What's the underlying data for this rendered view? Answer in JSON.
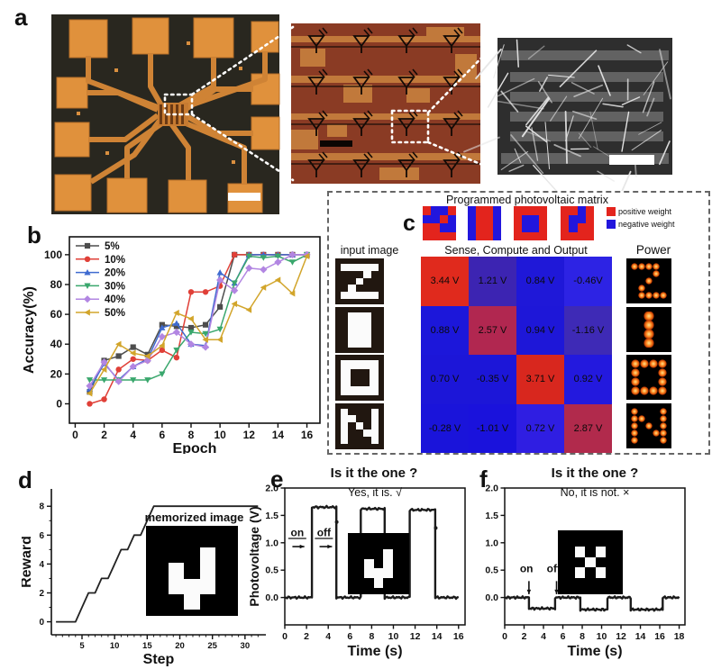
{
  "panel_labels": {
    "a": "a",
    "b": "b",
    "c": "c",
    "d": "d",
    "e": "e",
    "f": "f"
  },
  "panel_c": {
    "title": "Programmed photovoltaic matrix",
    "headers": {
      "input": "input image",
      "compute": "Sense, Compute and Output",
      "power": "Power"
    },
    "legend": {
      "positive_label": "positive weight",
      "negative_label": "negative weight",
      "positive_color": "#e3241d",
      "negative_color": "#2216dd"
    },
    "weight_patterns": [
      {
        "name": "weight-Z",
        "rows": [
          "RBBR",
          "BBRB",
          "RRBB",
          "RRRR"
        ]
      },
      {
        "name": "weight-I",
        "rows": [
          "BRRB",
          "BRRB",
          "BRRB",
          "BRRB"
        ]
      },
      {
        "name": "weight-O",
        "rows": [
          "RRRR",
          "RBBR",
          "RBBR",
          "RRRR"
        ]
      },
      {
        "name": "weight-N",
        "rows": [
          "RRBR",
          "RBBR",
          "RBRR",
          "RRRR"
        ]
      }
    ],
    "input_images": [
      {
        "name": "input-Z",
        "rows": [
          "11111",
          "00010",
          "00100",
          "01000",
          "11111"
        ]
      },
      {
        "name": "input-I",
        "rows": [
          "01110",
          "01110",
          "01110",
          "01110",
          "01110"
        ]
      },
      {
        "name": "input-O",
        "rows": [
          "1111",
          "1001",
          "1001",
          "1111"
        ]
      },
      {
        "name": "input-N",
        "rows": [
          "10001",
          "11001",
          "10101",
          "10011",
          "10001"
        ]
      }
    ],
    "matrix": {
      "rows": [
        [
          {
            "label": "3.44 V",
            "color": "#e02a1d"
          },
          {
            "label": "1.21 V",
            "color": "#3c24b2"
          },
          {
            "label": "0.84 V",
            "color": "#1f18d8"
          },
          {
            "label": "-0.46V",
            "color": "#2d23e4"
          }
        ],
        [
          {
            "label": "0.88 V",
            "color": "#1c17da"
          },
          {
            "label": "2.57 V",
            "color": "#b12750"
          },
          {
            "label": "0.94 V",
            "color": "#1e17d8"
          },
          {
            "label": "-1.16 V",
            "color": "#3e2ab6"
          }
        ],
        [
          {
            "label": "0.70 V",
            "color": "#1c16d8"
          },
          {
            "label": "-0.35 V",
            "color": "#1c16d8"
          },
          {
            "label": "3.71 V",
            "color": "#d8271e"
          },
          {
            "label": "0.92 V",
            "color": "#2319de"
          }
        ],
        [
          {
            "label": "-0.28 V",
            "color": "#1a14da"
          },
          {
            "label": "-1.01 V",
            "color": "#1a12dc"
          },
          {
            "label": "0.72 V",
            "color": "#2f1ee2"
          },
          {
            "label": "2.87 V",
            "color": "#b12a4c"
          }
        ]
      ]
    },
    "power_images": [
      {
        "name": "power-Z",
        "rows": [
          "11110",
          "00010",
          "00100",
          "01000",
          "01111"
        ]
      },
      {
        "name": "power-I",
        "rows": [
          "010",
          "010",
          "010",
          "010"
        ]
      },
      {
        "name": "power-O",
        "rows": [
          "1111",
          "1001",
          "1001",
          "1111"
        ]
      },
      {
        "name": "power-N",
        "rows": [
          "10001",
          "11001",
          "10101",
          "10011",
          "10001"
        ]
      }
    ]
  },
  "chart_data": [
    {
      "id": "b",
      "type": "line",
      "title": "",
      "xlabel": "Epoch",
      "ylabel": "Accuracy(%)",
      "xlim": [
        0,
        16
      ],
      "ylim": [
        0,
        100
      ],
      "xticks": [
        0,
        2,
        4,
        6,
        8,
        10,
        12,
        14,
        16
      ],
      "yticks": [
        0,
        20,
        40,
        60,
        80,
        100
      ],
      "legend_position": "top-left",
      "x": [
        1,
        2,
        3,
        4,
        5,
        6,
        7,
        8,
        9,
        10,
        11,
        12,
        13,
        14,
        15,
        16
      ],
      "series": [
        {
          "name": "5%",
          "color": "#4d4d4d",
          "marker": "square",
          "values": [
            8,
            29,
            32,
            38,
            33,
            53,
            52,
            51,
            53,
            65,
            100,
            100,
            100,
            100,
            100,
            100
          ]
        },
        {
          "name": "10%",
          "color": "#e04038",
          "marker": "circle",
          "values": [
            0,
            3,
            23,
            30,
            29,
            36,
            31,
            75,
            75,
            79,
            100,
            100,
            100,
            100,
            100,
            100
          ]
        },
        {
          "name": "20%",
          "color": "#3f6bd0",
          "marker": "triangle-up",
          "values": [
            10,
            27,
            16,
            25,
            30,
            51,
            54,
            40,
            39,
            88,
            81,
            100,
            100,
            100,
            100,
            100
          ]
        },
        {
          "name": "30%",
          "color": "#3aa76d",
          "marker": "triangle-down",
          "values": [
            16,
            16,
            16,
            16,
            16,
            20,
            36,
            48,
            47,
            50,
            81,
            99,
            98,
            99,
            95,
            100
          ]
        },
        {
          "name": "40%",
          "color": "#b286e2",
          "marker": "diamond",
          "values": [
            12,
            28,
            15,
            25,
            29,
            45,
            48,
            40,
            38,
            83,
            76,
            91,
            90,
            95,
            100,
            100
          ]
        },
        {
          "name": "50%",
          "color": "#d2a52b",
          "marker": "triangle-left",
          "values": [
            7,
            23,
            40,
            34,
            32,
            39,
            61,
            57,
            43,
            43,
            67,
            63,
            78,
            83,
            74,
            99
          ]
        }
      ]
    },
    {
      "id": "d",
      "type": "line",
      "xlabel": "Step",
      "ylabel": "Reward",
      "xlim": [
        1,
        32
      ],
      "ylim": [
        0,
        8
      ],
      "xticks": [
        5,
        10,
        15,
        20,
        25,
        30
      ],
      "yticks": [
        0,
        2,
        4,
        6,
        8
      ],
      "x": [
        1,
        2,
        3,
        4,
        5,
        6,
        7,
        8,
        9,
        10,
        11,
        12,
        13,
        14,
        15,
        16,
        32
      ],
      "values": [
        0,
        0,
        0,
        0,
        1,
        2,
        2,
        3,
        3,
        4,
        5,
        5,
        6,
        6,
        7,
        8,
        8
      ],
      "inset_label": "memorized image",
      "inset_grid": [
        "00000",
        "00010",
        "01010",
        "01110",
        "00100"
      ]
    },
    {
      "id": "e",
      "type": "line",
      "title": "Is it the one ?",
      "annotation": "Yes, it is. √",
      "xlabel": "Time (s)",
      "ylabel": "Photovoltage (V)",
      "xlim": [
        0,
        16
      ],
      "ylim": [
        -0.5,
        2.0
      ],
      "xticks": [
        0,
        2,
        4,
        6,
        8,
        10,
        12,
        14,
        16
      ],
      "yticks": [
        0.0,
        0.5,
        1.0,
        1.5,
        2.0
      ],
      "segments": [
        [
          0,
          2.5,
          0
        ],
        [
          2.5,
          4.75,
          1.65
        ],
        [
          4.75,
          7.0,
          0
        ],
        [
          7.0,
          9.2,
          1.62
        ],
        [
          9.2,
          11.5,
          0
        ],
        [
          11.5,
          13.85,
          1.6
        ],
        [
          13.85,
          16,
          0
        ]
      ],
      "extra_points": [
        [
          4.78,
          1.38
        ],
        [
          13.9,
          1.27
        ]
      ],
      "marks": [
        {
          "label": "on",
          "tx": 1.15,
          "ty": 1.12,
          "ax1": 0.7,
          "ay1": 0.93,
          "ax2": 1.8,
          "ay2": 0.93,
          "underline": true
        },
        {
          "label": "off",
          "tx": 3.6,
          "ty": 1.12,
          "ax1": 3.2,
          "ay1": 0.93,
          "ax2": 4.35,
          "ay2": 0.93,
          "underline": true
        }
      ],
      "inset_grid": [
        "00000",
        "00010",
        "01010",
        "01110",
        "00100"
      ]
    },
    {
      "id": "f",
      "type": "line",
      "title": "Is it the one ?",
      "annotation": "No, it is not. ×",
      "xlabel": "Time (s)",
      "ylabel": "",
      "xlim": [
        0,
        18
      ],
      "ylim": [
        -0.5,
        2.0
      ],
      "xticks": [
        0,
        2,
        4,
        6,
        8,
        10,
        12,
        14,
        16,
        18
      ],
      "yticks": [
        0.0,
        0.5,
        1.0,
        1.5,
        2.0
      ],
      "segments": [
        [
          0,
          2.5,
          0
        ],
        [
          2.5,
          5.2,
          -0.2
        ],
        [
          5.2,
          7.8,
          0
        ],
        [
          7.8,
          10.6,
          -0.22
        ],
        [
          10.6,
          13.0,
          0
        ],
        [
          13.0,
          16.3,
          -0.22
        ],
        [
          16.3,
          18,
          0
        ]
      ],
      "extra_points": [],
      "marks": [
        {
          "label": "on",
          "tx": 2.25,
          "ty": 0.46,
          "ax1": 2.5,
          "ay1": 0.3,
          "ax2": 2.5,
          "ay2": 0.06
        },
        {
          "label": "off",
          "tx": 5.05,
          "ty": 0.46,
          "ax1": 5.35,
          "ay1": 0.3,
          "ax2": 5.35,
          "ay2": 0.06
        }
      ],
      "inset_grid": [
        "00000",
        "01010",
        "00100",
        "01010",
        "00000"
      ]
    }
  ]
}
